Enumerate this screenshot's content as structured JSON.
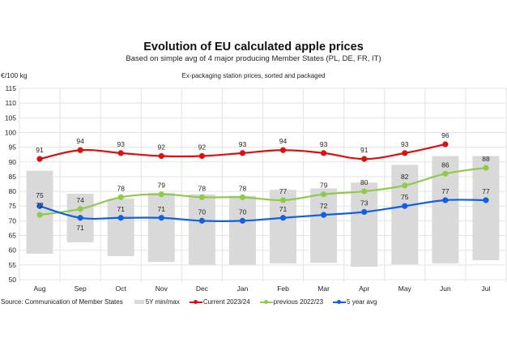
{
  "header": {
    "title": "Evolution of EU calculated apple prices",
    "subtitle": "Based on simple avg of 4 major producing Member States (PL, DE, FR, IT)",
    "unit": "€/100 kg",
    "note": "Ex-packaging station prices, sorted and packaged"
  },
  "footer": {
    "source": "Source: Communication of Member States"
  },
  "colors": {
    "current": "#dd0f0f",
    "previous": "#8fca4d",
    "avg5y": "#1260dd",
    "minmax": "#d9d9d9",
    "grid": "#e3e3e3"
  },
  "chart_data": {
    "type": "line",
    "title": "Evolution of EU calculated apple prices",
    "subtitle": "Based on simple avg of 4 major producing Member States (PL, DE, FR, IT)",
    "annotation": "Ex-packaging station prices, sorted and packaged",
    "xlabel": "",
    "ylabel": "€/100 kg",
    "ylim": [
      50,
      115
    ],
    "yticks": [
      50,
      55,
      60,
      65,
      70,
      75,
      80,
      85,
      90,
      95,
      100,
      105,
      110,
      115
    ],
    "grid": true,
    "legend_position": "bottom",
    "categories": [
      "Aug",
      "Sep",
      "Oct",
      "Nov",
      "Dec",
      "Jan",
      "Feb",
      "Mar",
      "Apr",
      "May",
      "Jun",
      "Jul"
    ],
    "range_series": {
      "name": "5Y min/max",
      "type": "floating-bar",
      "min": [
        58.8,
        62.7,
        58,
        56,
        55,
        55,
        55.5,
        55.7,
        54.4,
        55.2,
        55.5,
        56.6
      ],
      "max": [
        87,
        79.2,
        77.5,
        79.5,
        79,
        78.5,
        80.5,
        81,
        83,
        89,
        92,
        92
      ]
    },
    "series": [
      {
        "name": "Current 2023/24",
        "key": "current",
        "values": [
          91,
          94,
          93,
          92,
          92,
          93,
          94,
          93,
          91,
          93,
          96,
          null
        ]
      },
      {
        "name": "previous 2022/23",
        "key": "previous",
        "values": [
          72,
          74,
          78,
          79,
          78,
          78,
          77,
          79,
          80,
          82,
          86,
          88
        ]
      },
      {
        "name": "5 year avg",
        "key": "avg5y",
        "values": [
          75,
          71,
          71,
          71,
          70,
          70,
          71,
          72,
          73,
          75,
          77,
          77
        ]
      }
    ]
  }
}
